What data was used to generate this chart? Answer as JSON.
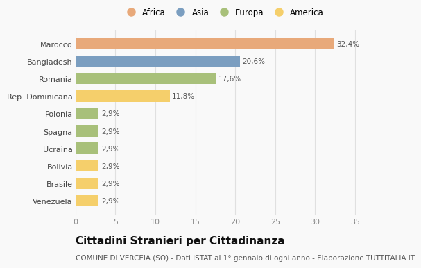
{
  "countries": [
    "Venezuela",
    "Brasile",
    "Bolivia",
    "Ucraina",
    "Spagna",
    "Polonia",
    "Rep. Dominicana",
    "Romania",
    "Bangladesh",
    "Marocco"
  ],
  "values": [
    2.9,
    2.9,
    2.9,
    2.9,
    2.9,
    2.9,
    11.8,
    17.6,
    20.6,
    32.4
  ],
  "labels": [
    "2,9%",
    "2,9%",
    "2,9%",
    "2,9%",
    "2,9%",
    "2,9%",
    "11,8%",
    "17,6%",
    "20,6%",
    "32,4%"
  ],
  "colors": [
    "#F5CF6B",
    "#F5CF6B",
    "#F5CF6B",
    "#A8C07A",
    "#A8C07A",
    "#A8C07A",
    "#F5CF6B",
    "#A8C07A",
    "#7B9EC0",
    "#E8A97A"
  ],
  "legend_labels": [
    "Africa",
    "Asia",
    "Europa",
    "America"
  ],
  "legend_colors": [
    "#E8A97A",
    "#7B9EC0",
    "#A8C07A",
    "#F5CF6B"
  ],
  "title": "Cittadini Stranieri per Cittadinanza",
  "subtitle": "COMUNE DI VERCEIA (SO) - Dati ISTAT al 1° gennaio di ogni anno - Elaborazione TUTTITALIA.IT",
  "xlim": [
    0,
    37
  ],
  "xticks": [
    0,
    5,
    10,
    15,
    20,
    25,
    30,
    35
  ],
  "background_color": "#F9F9F9",
  "grid_color": "#E0E0E0",
  "label_fontsize": 7.5,
  "ylabel_fontsize": 8,
  "xlabel_fontsize": 8,
  "title_fontsize": 11,
  "subtitle_fontsize": 7.5,
  "bar_height": 0.65
}
